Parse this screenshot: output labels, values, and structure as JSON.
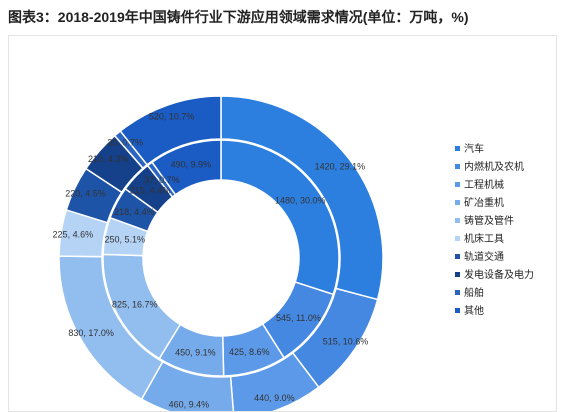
{
  "title": "图表3：2018-2019年中国铸件行业下游应用领域需求情况(单位：万吨，%)",
  "chart_data": {
    "type": "donut",
    "categories": [
      "汽车",
      "内燃机及农机",
      "工程机械",
      "矿冶重机",
      "铸管及管件",
      "机床工具",
      "轨道交通",
      "发电设备及电力",
      "船舶",
      "其他"
    ],
    "colors": [
      "#2d7fdf",
      "#4488e2",
      "#5c99e8",
      "#75aaeb",
      "#91bdef",
      "#b5d3f5",
      "#1e54a8",
      "#15408a",
      "#2b65c2",
      "#1a5bc4"
    ],
    "series": [
      {
        "ring": "outer",
        "values": [
          1420,
          515,
          440,
          460,
          830,
          225,
          220,
          210,
          35,
          520
        ],
        "labels": [
          "1420, 29.1%",
          "515, 10.6%",
          "440, 9.0%",
          "460, 9.4%",
          "830, 17.0%",
          "225, 4.6%",
          "220, 4.5%",
          "210, 4.3%",
          "35, 0.7%",
          "520, 10.7%"
        ]
      },
      {
        "ring": "inner",
        "values": [
          1480,
          545,
          425,
          450,
          825,
          250,
          218,
          215,
          37,
          490
        ],
        "labels": [
          "1480, 30.0%",
          "545, 11.0%",
          "425, 8.6%",
          "450, 9.1%",
          "825, 16.7%",
          "250, 5.1%",
          "218, 4.4%",
          "215, 4.4%",
          "37, 0.7%",
          "490, 9.9%"
        ]
      }
    ],
    "legend_position": "right"
  }
}
